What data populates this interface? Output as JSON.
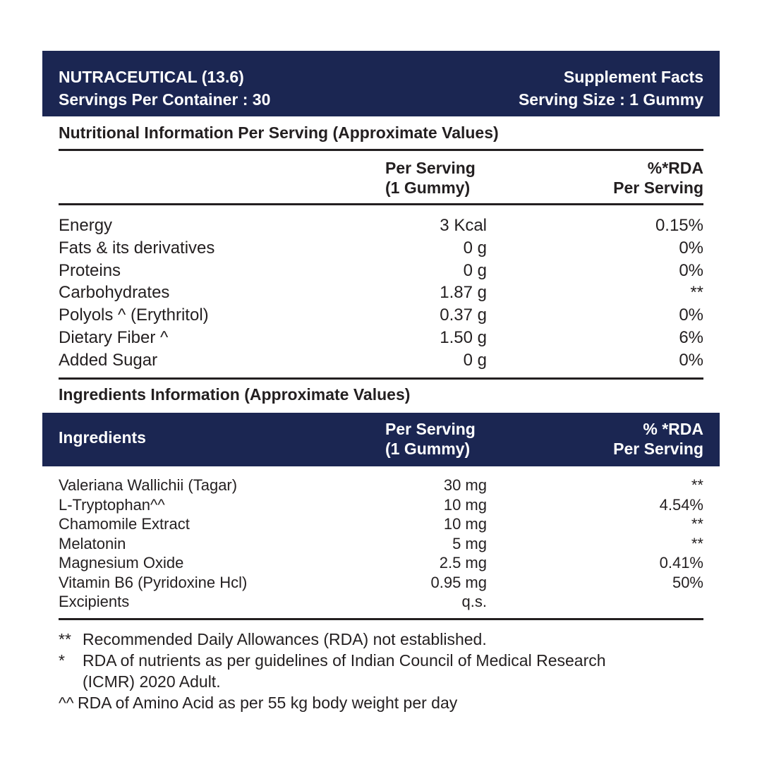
{
  "header": {
    "product": "NUTRACEUTICAL (13.6)",
    "servings": "Servings Per Container : 30",
    "title": "Supplement Facts",
    "serving_size": "Serving Size : 1 Gummy"
  },
  "nutrition": {
    "title": "Nutritional Information Per Serving (Approximate Values)",
    "col2": [
      "Per Serving",
      "(1 Gummy)"
    ],
    "col3": [
      "%*RDA",
      "Per Serving"
    ],
    "rows": [
      {
        "name": "Energy",
        "amount": "3 Kcal",
        "rda": "0.15%"
      },
      {
        "name": "Fats & its derivatives",
        "amount": "0 g",
        "rda": "0%"
      },
      {
        "name": "Proteins",
        "amount": "0 g",
        "rda": "0%"
      },
      {
        "name": "Carbohydrates",
        "amount": "1.87 g",
        "rda": "**"
      },
      {
        "name": "Polyols ^ (Erythritol)",
        "amount": "0.37 g",
        "rda": "0%"
      },
      {
        "name": "Dietary Fiber ^",
        "amount": "1.50 g",
        "rda": "6%"
      },
      {
        "name": "Added Sugar",
        "amount": "0 g",
        "rda": "0%"
      }
    ]
  },
  "ingredients": {
    "title": "Ingredients Information (Approximate Values)",
    "col1": "Ingredients",
    "col2": [
      "Per Serving",
      "(1 Gummy)"
    ],
    "col3": [
      "% *RDA",
      "Per Serving"
    ],
    "rows": [
      {
        "name": "Valeriana Wallichii (Tagar)",
        "amount": "30 mg",
        "rda": "**"
      },
      {
        "name": "L-Tryptophan^^",
        "amount": "10 mg",
        "rda": "4.54%"
      },
      {
        "name": "Chamomile Extract",
        "amount": "10 mg",
        "rda": "**"
      },
      {
        "name": "Melatonin",
        "amount": "5 mg",
        "rda": "**"
      },
      {
        "name": "Magnesium Oxide",
        "amount": "2.5 mg",
        "rda": "0.41%"
      },
      {
        "name": "Vitamin B6 (Pyridoxine Hcl)",
        "amount": "0.95 mg",
        "rda": "50%"
      },
      {
        "name": "Excipients",
        "amount": "q.s.",
        "rda": ""
      }
    ]
  },
  "footnotes": [
    {
      "mark": "**",
      "text": "Recommended Daily Allowances (RDA) not established."
    },
    {
      "mark": "*",
      "text": "RDA of nutrients as per guidelines of Indian Council of Medical Research"
    },
    {
      "mark": "",
      "text": "(ICMR) 2020 Adult."
    },
    {
      "mark": "^^",
      "text": "RDA of Amino Acid as per 55 kg body weight per day"
    }
  ],
  "colors": {
    "band": "#1b2652",
    "text": "#231f20"
  }
}
